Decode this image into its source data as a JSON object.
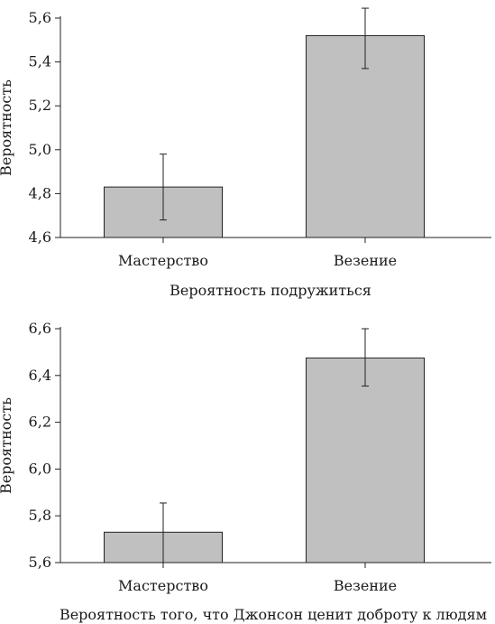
{
  "chart_data": [
    {
      "type": "bar",
      "categories": [
        "Мастерство",
        "Везение"
      ],
      "values": [
        4.83,
        5.52
      ],
      "error_low": [
        4.68,
        5.37
      ],
      "error_high": [
        4.98,
        5.645
      ],
      "ylabel": "Вероятность",
      "xlabel": "Вероятность подружиться",
      "ylim": [
        4.6,
        5.6
      ],
      "yticks": [
        4.6,
        4.8,
        5.0,
        5.2,
        5.4,
        5.6
      ],
      "ytick_labels": [
        "4,6",
        "4,8",
        "5,0",
        "5,2",
        "5,4",
        "5,6"
      ],
      "grid": false,
      "bar_color": "#c0c0c0"
    },
    {
      "type": "bar",
      "categories": [
        "Мастерство",
        "Везение"
      ],
      "values": [
        5.73,
        6.475
      ],
      "error_low": [
        5.6,
        6.355
      ],
      "error_high": [
        5.855,
        6.6
      ],
      "ylabel": "Вероятность",
      "xlabel": "Вероятность того, что Джонсон ценит доброту к людям",
      "ylim": [
        5.6,
        6.6
      ],
      "yticks": [
        5.6,
        5.8,
        6.0,
        6.2,
        6.4,
        6.6
      ],
      "ytick_labels": [
        "5,6",
        "5,8",
        "6,0",
        "6,2",
        "6,4",
        "6,6"
      ],
      "grid": false,
      "bar_color": "#c0c0c0"
    }
  ]
}
